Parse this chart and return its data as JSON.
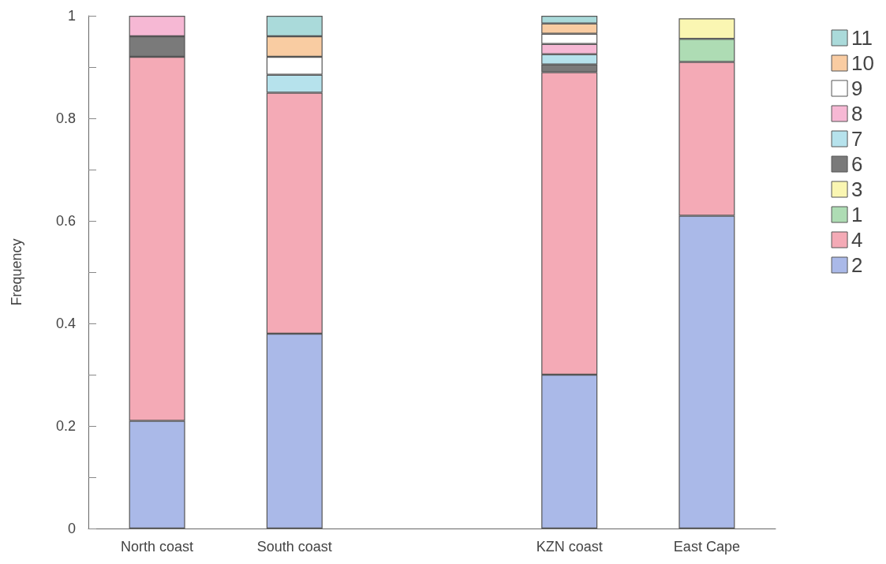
{
  "chart_data": {
    "type": "bar",
    "stacked": true,
    "ylabel": "Frequency",
    "categories": [
      "North coast",
      "South coast",
      null,
      "KZN coast",
      "East Cape"
    ],
    "series": [
      {
        "name": "2",
        "color": "#aab9e8",
        "values": [
          0.21,
          0.38,
          null,
          0.3,
          0.61
        ]
      },
      {
        "name": "4",
        "color": "#f4aab6",
        "values": [
          0.71,
          0.47,
          null,
          0.59,
          0.3
        ]
      },
      {
        "name": "1",
        "color": "#aedcb4",
        "values": [
          null,
          null,
          null,
          null,
          0.045
        ]
      },
      {
        "name": "3",
        "color": "#faf6b2",
        "values": [
          null,
          null,
          null,
          null,
          0.04
        ]
      },
      {
        "name": "6",
        "color": "#7a7a7a",
        "values": [
          0.04,
          null,
          null,
          0.015,
          null
        ]
      },
      {
        "name": "7",
        "color": "#b6e2ec",
        "values": [
          null,
          0.035,
          null,
          0.02,
          null
        ]
      },
      {
        "name": "8",
        "color": "#f6b8d4",
        "values": [
          0.04,
          null,
          null,
          0.02,
          null
        ]
      },
      {
        "name": "9",
        "color": "#ffffff",
        "values": [
          null,
          0.035,
          null,
          0.02,
          null
        ]
      },
      {
        "name": "10",
        "color": "#f9cca2",
        "values": [
          null,
          0.04,
          null,
          0.02,
          null
        ]
      },
      {
        "name": "11",
        "color": "#aadada",
        "values": [
          null,
          0.04,
          null,
          0.015,
          null
        ]
      }
    ],
    "ylim": [
      0,
      1
    ],
    "yticks": [
      0,
      {
        "value": 0.1,
        "label": null
      },
      0.2,
      {
        "value": 0.3,
        "label": null
      },
      0.4,
      {
        "value": 0.5,
        "label": null
      },
      0.6,
      {
        "value": 0.7,
        "label": null
      },
      0.8,
      {
        "value": 0.9,
        "label": null
      },
      1
    ],
    "grid": false,
    "legend": "right"
  }
}
